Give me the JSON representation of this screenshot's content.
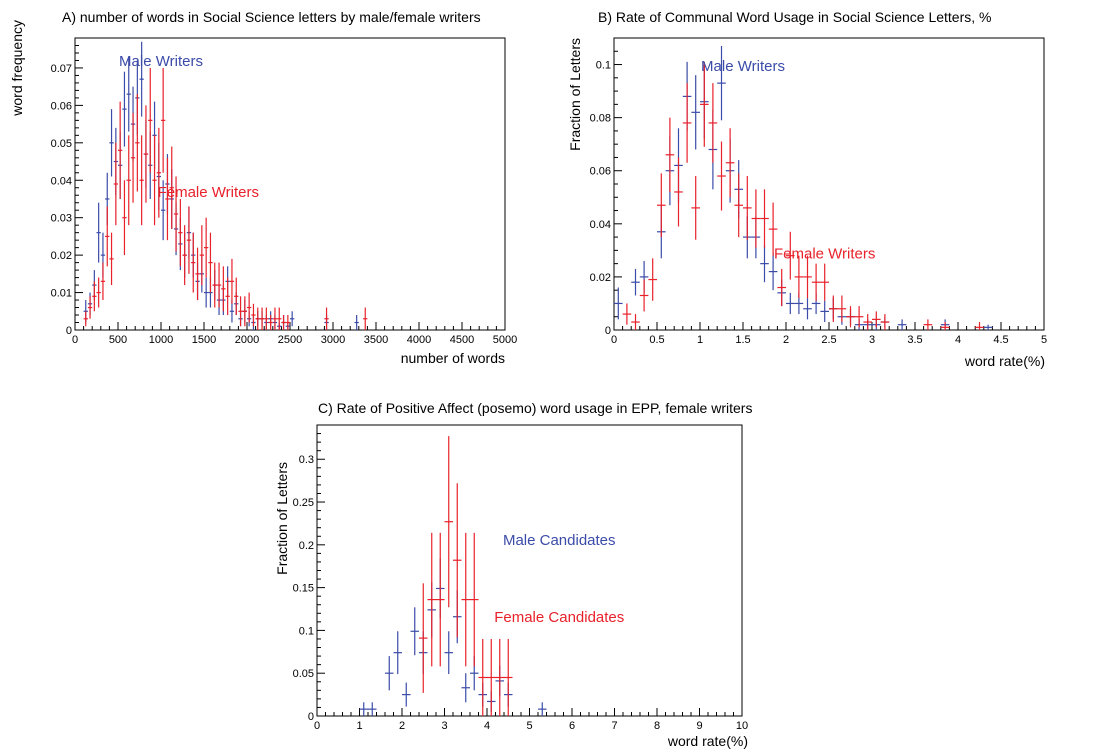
{
  "colors": {
    "male": "#3b4ba8",
    "female": "#e8212a",
    "axis": "#000000"
  },
  "chart_data": [
    {
      "id": "A",
      "type": "scatter",
      "title": "A) number of words in Social Science letters by male/female writers",
      "xlabel": "number of words",
      "ylabel": "word frequency",
      "xlim": [
        0,
        5000
      ],
      "ylim": [
        0,
        0.078
      ],
      "xticks": [
        0,
        500,
        1000,
        1500,
        2000,
        2500,
        3000,
        3500,
        4000,
        4500,
        5000
      ],
      "xtick_labels": [
        "0",
        "500",
        "1000",
        "1500",
        "2000",
        "2500",
        "3000",
        "3500",
        "4000",
        "4500",
        "5000"
      ],
      "yticks": [
        0,
        0.01,
        0.02,
        0.03,
        0.04,
        0.05,
        0.06,
        0.07
      ],
      "ytick_labels": [
        "0",
        "0.01",
        "0.02",
        "0.03",
        "0.04",
        "0.05",
        "0.06",
        "0.07"
      ],
      "xbinwidth": 50,
      "grid": false,
      "annotations": [
        {
          "text": "Male Writers",
          "series": "male",
          "x": 1000,
          "y": 0.0705
        },
        {
          "text": "Female Writers",
          "series": "female",
          "x": 1550,
          "y": 0.0355
        }
      ],
      "series": [
        {
          "key": "male",
          "x": [
            125,
            175,
            225,
            275,
            325,
            375,
            425,
            475,
            525,
            575,
            625,
            675,
            725,
            775,
            825,
            875,
            925,
            975,
            1025,
            1075,
            1125,
            1175,
            1225,
            1275,
            1325,
            1375,
            1425,
            1475,
            1525,
            1575,
            1625,
            1675,
            1725,
            1775,
            1825,
            1875,
            1925,
            1975,
            2025,
            2075,
            2125,
            2175,
            2225,
            2275,
            2325,
            2375,
            2425,
            2475,
            2525,
            2925,
            3275
          ],
          "y": [
            0.005,
            0.007,
            0.012,
            0.026,
            0.02,
            0.035,
            0.05,
            0.045,
            0.044,
            0.059,
            0.063,
            0.055,
            0.062,
            0.067,
            0.047,
            0.044,
            0.052,
            0.041,
            0.032,
            0.039,
            0.035,
            0.027,
            0.023,
            0.02,
            0.026,
            0.02,
            0.013,
            0.015,
            0.01,
            0.01,
            0.012,
            0.008,
            0.008,
            0.013,
            0.005,
            0.007,
            0.003,
            0.005,
            0.003,
            0.002,
            0.003,
            0.003,
            0.002,
            0.003,
            0.002,
            0.001,
            0.002,
            0.001,
            0.003,
            0.002,
            0.002
          ],
          "yerr": [
            0.003,
            0.003,
            0.004,
            0.008,
            0.006,
            0.007,
            0.009,
            0.009,
            0.009,
            0.01,
            0.01,
            0.01,
            0.01,
            0.01,
            0.009,
            0.009,
            0.009,
            0.009,
            0.008,
            0.008,
            0.008,
            0.007,
            0.007,
            0.006,
            0.007,
            0.006,
            0.005,
            0.005,
            0.004,
            0.004,
            0.004,
            0.004,
            0.004,
            0.004,
            0.003,
            0.003,
            0.002,
            0.003,
            0.002,
            0.002,
            0.002,
            0.002,
            0.002,
            0.002,
            0.002,
            0.001,
            0.002,
            0.001,
            0.002,
            0.002,
            0.002
          ]
        },
        {
          "key": "female",
          "x": [
            125,
            175,
            225,
            275,
            325,
            375,
            425,
            475,
            525,
            575,
            625,
            675,
            725,
            775,
            825,
            875,
            925,
            975,
            1025,
            1075,
            1125,
            1175,
            1225,
            1275,
            1325,
            1375,
            1425,
            1475,
            1525,
            1575,
            1625,
            1675,
            1725,
            1775,
            1825,
            1875,
            1925,
            1975,
            2025,
            2075,
            2125,
            2175,
            2225,
            2275,
            2325,
            2375,
            2425,
            2475,
            2925,
            3375
          ],
          "y": [
            0.003,
            0.006,
            0.009,
            0.01,
            0.013,
            0.025,
            0.019,
            0.039,
            0.048,
            0.03,
            0.04,
            0.046,
            0.05,
            0.04,
            0.047,
            0.056,
            0.04,
            0.042,
            0.056,
            0.035,
            0.038,
            0.031,
            0.026,
            0.02,
            0.024,
            0.018,
            0.015,
            0.02,
            0.022,
            0.018,
            0.012,
            0.012,
            0.011,
            0.009,
            0.013,
            0.009,
            0.005,
            0.005,
            0.006,
            0.004,
            0.003,
            0.003,
            0.003,
            0.002,
            0.003,
            0.003,
            0.002,
            0.002,
            0.003,
            0.003
          ],
          "yerr": [
            0.002,
            0.003,
            0.004,
            0.004,
            0.005,
            0.008,
            0.007,
            0.011,
            0.013,
            0.01,
            0.012,
            0.012,
            0.013,
            0.012,
            0.013,
            0.014,
            0.012,
            0.012,
            0.014,
            0.011,
            0.011,
            0.01,
            0.009,
            0.008,
            0.009,
            0.008,
            0.007,
            0.008,
            0.008,
            0.008,
            0.006,
            0.006,
            0.006,
            0.005,
            0.006,
            0.005,
            0.004,
            0.004,
            0.004,
            0.003,
            0.003,
            0.003,
            0.003,
            0.002,
            0.003,
            0.003,
            0.002,
            0.002,
            0.003,
            0.003
          ]
        }
      ]
    },
    {
      "id": "B",
      "type": "scatter",
      "title": "B)  Rate of Communal Word Usage in Social Science Letters, %",
      "xlabel": "word rate(%)",
      "ylabel": "Fraction of Letters",
      "xlim": [
        0,
        5
      ],
      "ylim": [
        0,
        0.11
      ],
      "xticks": [
        0,
        0.5,
        1,
        1.5,
        2,
        2.5,
        3,
        3.5,
        4,
        4.5,
        5
      ],
      "xtick_labels": [
        "0",
        "0.5",
        "1",
        "1.5",
        "2",
        "2.5",
        "3",
        "3.5",
        "4",
        "4.5",
        "5"
      ],
      "yticks": [
        0,
        0.02,
        0.04,
        0.06,
        0.08,
        0.1
      ],
      "ytick_labels": [
        "0",
        "0.02",
        "0.04",
        "0.06",
        "0.08",
        "0.1"
      ],
      "xbinwidth": 0.1,
      "grid": false,
      "annotations": [
        {
          "text": "Male Writers",
          "series": "male",
          "x": 1.5,
          "y": 0.0975
        },
        {
          "text": "Female Writers",
          "series": "female",
          "x": 2.45,
          "y": 0.027
        }
      ],
      "series": [
        {
          "key": "male",
          "x": [
            0.05,
            0.25,
            0.35,
            0.55,
            0.65,
            0.75,
            0.85,
            0.95,
            1.05,
            1.15,
            1.25,
            1.35,
            1.45,
            1.55,
            1.65,
            1.75,
            1.85,
            1.95,
            2.05,
            2.15,
            2.25,
            2.35,
            2.45,
            2.55,
            2.65,
            2.75,
            2.85,
            2.95,
            3.05,
            3.15,
            3.35,
            3.85,
            4.35
          ],
          "y": [
            0.01,
            0.018,
            0.02,
            0.037,
            0.06,
            0.062,
            0.088,
            0.082,
            0.086,
            0.068,
            0.093,
            0.06,
            0.053,
            0.035,
            0.035,
            0.025,
            0.022,
            0.014,
            0.01,
            0.01,
            0.008,
            0.01,
            0.007,
            0.008,
            0.005,
            0.005,
            0.002,
            0.002,
            0.002,
            0.003,
            0.002,
            0.002,
            0.001
          ],
          "yerr": [
            0.006,
            0.005,
            0.006,
            0.01,
            0.013,
            0.014,
            0.013,
            0.014,
            0.014,
            0.015,
            0.014,
            0.012,
            0.011,
            0.008,
            0.008,
            0.007,
            0.007,
            0.005,
            0.004,
            0.004,
            0.004,
            0.004,
            0.004,
            0.004,
            0.003,
            0.003,
            0.002,
            0.002,
            0.002,
            0.002,
            0.002,
            0.002,
            0.001
          ]
        },
        {
          "key": "female",
          "x": [
            0.15,
            0.25,
            0.35,
            0.45,
            0.55,
            0.65,
            0.75,
            0.85,
            0.95,
            1.05,
            1.15,
            1.25,
            1.35,
            1.45,
            1.55,
            1.65,
            1.75,
            1.85,
            1.95,
            2.05,
            2.15,
            2.25,
            2.35,
            2.45,
            2.55,
            2.65,
            2.75,
            2.85,
            2.95,
            3.05,
            3.15,
            3.65,
            3.85,
            4.25
          ],
          "y": [
            0.006,
            0.003,
            0.013,
            0.019,
            0.047,
            0.066,
            0.052,
            0.078,
            0.046,
            0.085,
            0.078,
            0.058,
            0.063,
            0.047,
            0.046,
            0.042,
            0.042,
            0.038,
            0.016,
            0.028,
            0.02,
            0.02,
            0.018,
            0.018,
            0.008,
            0.008,
            0.005,
            0.005,
            0.003,
            0.004,
            0.003,
            0.002,
            0.001,
            0.001
          ],
          "yerr": [
            0.004,
            0.003,
            0.006,
            0.008,
            0.012,
            0.014,
            0.013,
            0.015,
            0.012,
            0.016,
            0.015,
            0.013,
            0.013,
            0.012,
            0.012,
            0.011,
            0.011,
            0.01,
            0.007,
            0.009,
            0.008,
            0.008,
            0.007,
            0.007,
            0.005,
            0.005,
            0.004,
            0.004,
            0.003,
            0.003,
            0.003,
            0.002,
            0.002,
            0.002
          ]
        }
      ]
    },
    {
      "id": "C",
      "type": "scatter",
      "title": "C)  Rate of Positive Affect (posemo) word usage in EPP, female writers",
      "xlabel": "word rate(%)",
      "ylabel": "Fraction of Letters",
      "xlim": [
        0,
        10
      ],
      "ylim": [
        0,
        0.34
      ],
      "xticks": [
        0,
        1,
        2,
        3,
        4,
        5,
        6,
        7,
        8,
        9,
        10
      ],
      "xtick_labels": [
        "0",
        "1",
        "2",
        "3",
        "4",
        "5",
        "6",
        "7",
        "8",
        "9",
        "10"
      ],
      "yticks": [
        0,
        0.05,
        0.1,
        0.15,
        0.2,
        0.25,
        0.3
      ],
      "ytick_labels": [
        "0",
        "0.05",
        "0.1",
        "0.15",
        "0.2",
        "0.25",
        "0.3"
      ],
      "xbinwidth": 0.2,
      "grid": false,
      "annotations": [
        {
          "text": "Male Candidates",
          "series": "male",
          "x": 5.7,
          "y": 0.2
        },
        {
          "text": "Female Candidates",
          "series": "female",
          "x": 5.7,
          "y": 0.11
        }
      ],
      "series": [
        {
          "key": "male",
          "x": [
            1.1,
            1.3,
            1.7,
            1.9,
            2.1,
            2.3,
            2.5,
            2.7,
            2.9,
            3.1,
            3.3,
            3.5,
            3.7,
            3.9,
            4.1,
            4.3,
            4.5,
            5.3
          ],
          "y": [
            0.008,
            0.008,
            0.05,
            0.074,
            0.025,
            0.099,
            0.074,
            0.124,
            0.149,
            0.074,
            0.116,
            0.033,
            0.05,
            0.025,
            0.017,
            0.041,
            0.025,
            0.008
          ],
          "yerr": [
            0.008,
            0.008,
            0.02,
            0.025,
            0.014,
            0.028,
            0.025,
            0.032,
            0.035,
            0.025,
            0.031,
            0.017,
            0.02,
            0.014,
            0.012,
            0.018,
            0.014,
            0.008
          ]
        },
        {
          "key": "female",
          "x": [
            2.5,
            2.7,
            2.9,
            3.1,
            3.3,
            3.5,
            3.7,
            3.9,
            4.1,
            4.3,
            4.5
          ],
          "y": [
            0.091,
            0.136,
            0.136,
            0.227,
            0.182,
            0.136,
            0.136,
            0.045,
            0.045,
            0.045,
            0.045
          ],
          "yerr": [
            0.064,
            0.078,
            0.078,
            0.1,
            0.09,
            0.078,
            0.078,
            0.045,
            0.045,
            0.045,
            0.045
          ]
        }
      ]
    }
  ]
}
